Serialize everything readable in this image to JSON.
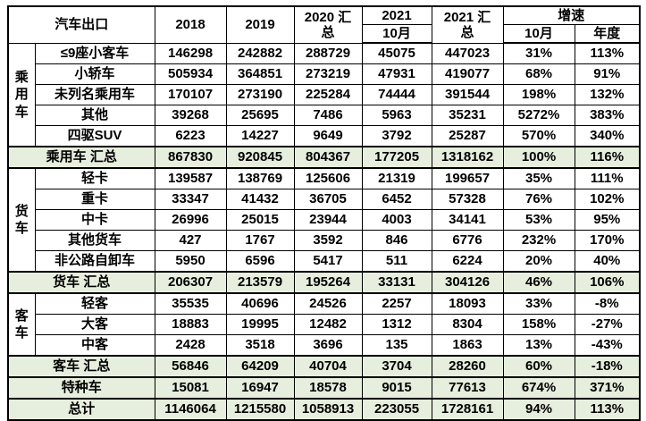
{
  "colors": {
    "summary_row_bg": "#e6eedd",
    "border": "#000000",
    "text": "#000000",
    "background": "#ffffff"
  },
  "chart_data": {
    "type": "table",
    "title": "汽车出口",
    "header": {
      "corner": "汽车出口",
      "col_2018": "2018",
      "col_2019": "2019",
      "col_2020_total": "2020 汇\n总",
      "col_2021_top": "2021",
      "col_2021_sub": "10月",
      "col_2021_total": "2021 汇\n总",
      "growth_label": "增速",
      "growth_sub_month": "10月",
      "growth_sub_year": "年度"
    },
    "columns_flat": [
      "汽车出口",
      "2018",
      "2019",
      "2020 汇总",
      "2021 10月",
      "2021 汇总",
      "增速 10月",
      "增速 年度"
    ],
    "rows": [
      {
        "group": "乘用车",
        "group_span": 5,
        "label": "≤9座小客车",
        "values": [
          "146298",
          "242882",
          "288729",
          "45075",
          "447023",
          "31%",
          "113%"
        ]
      },
      {
        "label": "小轿车",
        "values": [
          "505934",
          "364851",
          "273219",
          "47931",
          "419077",
          "68%",
          "91%"
        ]
      },
      {
        "label": "未列名乘用车",
        "values": [
          "170107",
          "273190",
          "225284",
          "74444",
          "391544",
          "198%",
          "132%"
        ]
      },
      {
        "label": "其他",
        "values": [
          "39268",
          "25695",
          "7486",
          "5963",
          "35231",
          "5272%",
          "383%"
        ]
      },
      {
        "label": "四驱SUV",
        "values": [
          "6223",
          "14227",
          "9649",
          "3792",
          "25287",
          "570%",
          "340%"
        ]
      },
      {
        "label": "乘用车 汇总",
        "summary": true,
        "values": [
          "867830",
          "920845",
          "804367",
          "177205",
          "1318162",
          "100%",
          "116%"
        ]
      },
      {
        "group": "货车",
        "group_span": 5,
        "label": "轻卡",
        "values": [
          "139587",
          "138769",
          "125606",
          "21319",
          "199657",
          "35%",
          "111%"
        ]
      },
      {
        "label": "重卡",
        "values": [
          "33347",
          "41432",
          "36705",
          "6452",
          "57328",
          "76%",
          "102%"
        ]
      },
      {
        "label": "中卡",
        "values": [
          "26996",
          "25015",
          "23944",
          "4003",
          "34141",
          "53%",
          "95%"
        ]
      },
      {
        "label": "其他货车",
        "values": [
          "427",
          "1767",
          "3592",
          "846",
          "6776",
          "232%",
          "170%"
        ]
      },
      {
        "label": "非公路自卸车",
        "values": [
          "5950",
          "6596",
          "5417",
          "511",
          "6224",
          "20%",
          "40%"
        ]
      },
      {
        "label": "货车 汇总",
        "summary": true,
        "values": [
          "206307",
          "213579",
          "195264",
          "33131",
          "304126",
          "46%",
          "106%"
        ]
      },
      {
        "group": "客车",
        "group_span": 3,
        "label": "轻客",
        "values": [
          "35535",
          "40696",
          "24526",
          "2257",
          "18093",
          "33%",
          "-8%"
        ]
      },
      {
        "label": "大客",
        "values": [
          "18883",
          "19995",
          "12482",
          "1312",
          "8304",
          "158%",
          "-27%"
        ]
      },
      {
        "label": "中客",
        "values": [
          "2428",
          "3518",
          "3696",
          "135",
          "1863",
          "13%",
          "-43%"
        ]
      },
      {
        "label": "客车 汇总",
        "summary": true,
        "values": [
          "56846",
          "64209",
          "40704",
          "3704",
          "28260",
          "60%",
          "-18%"
        ]
      },
      {
        "label": "特种车",
        "summary": true,
        "values": [
          "15081",
          "16947",
          "18578",
          "9015",
          "77613",
          "674%",
          "371%"
        ]
      },
      {
        "label": "总计",
        "summary": true,
        "values": [
          "1146064",
          "1215580",
          "1058913",
          "223055",
          "1728161",
          "94%",
          "113%"
        ]
      }
    ]
  }
}
